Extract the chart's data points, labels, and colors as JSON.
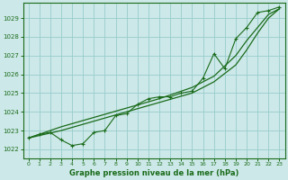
{
  "title": "Graphe pression niveau de la mer (hPa)",
  "bg_color": "#cce8e8",
  "grid_color": "#99cccc",
  "line_color": "#1a6b1a",
  "marker_color": "#1a6b1a",
  "xlim": [
    -0.5,
    23.5
  ],
  "ylim": [
    1021.5,
    1029.8
  ],
  "xticks": [
    0,
    1,
    2,
    3,
    4,
    5,
    6,
    7,
    8,
    9,
    10,
    11,
    12,
    13,
    14,
    15,
    16,
    17,
    18,
    19,
    20,
    21,
    22,
    23
  ],
  "yticks": [
    1022,
    1023,
    1024,
    1025,
    1026,
    1027,
    1028,
    1029
  ],
  "main_x": [
    0,
    1,
    2,
    3,
    4,
    5,
    6,
    7,
    8,
    9,
    10,
    11,
    12,
    13,
    14,
    15,
    16,
    17,
    18,
    19,
    20,
    21,
    22,
    23
  ],
  "main_y": [
    1022.6,
    1022.8,
    1022.9,
    1022.5,
    1022.2,
    1022.3,
    1022.9,
    1023.0,
    1023.8,
    1023.9,
    1024.4,
    1024.7,
    1024.8,
    1024.8,
    1025.0,
    1025.1,
    1025.8,
    1027.1,
    1026.3,
    1027.9,
    1028.5,
    1029.3,
    1029.4,
    1029.6
  ],
  "trend1_x": [
    0,
    3,
    6,
    9,
    12,
    15,
    17,
    19,
    20,
    21,
    22,
    23
  ],
  "trend1_y": [
    1022.6,
    1023.2,
    1023.7,
    1024.2,
    1024.7,
    1025.3,
    1025.9,
    1027.0,
    1027.8,
    1028.5,
    1029.2,
    1029.5
  ],
  "trend2_x": [
    0,
    3,
    6,
    9,
    12,
    15,
    17,
    19,
    20,
    21,
    22,
    23
  ],
  "trend2_y": [
    1022.6,
    1023.0,
    1023.5,
    1024.0,
    1024.5,
    1025.0,
    1025.6,
    1026.5,
    1027.3,
    1028.2,
    1029.0,
    1029.5
  ]
}
